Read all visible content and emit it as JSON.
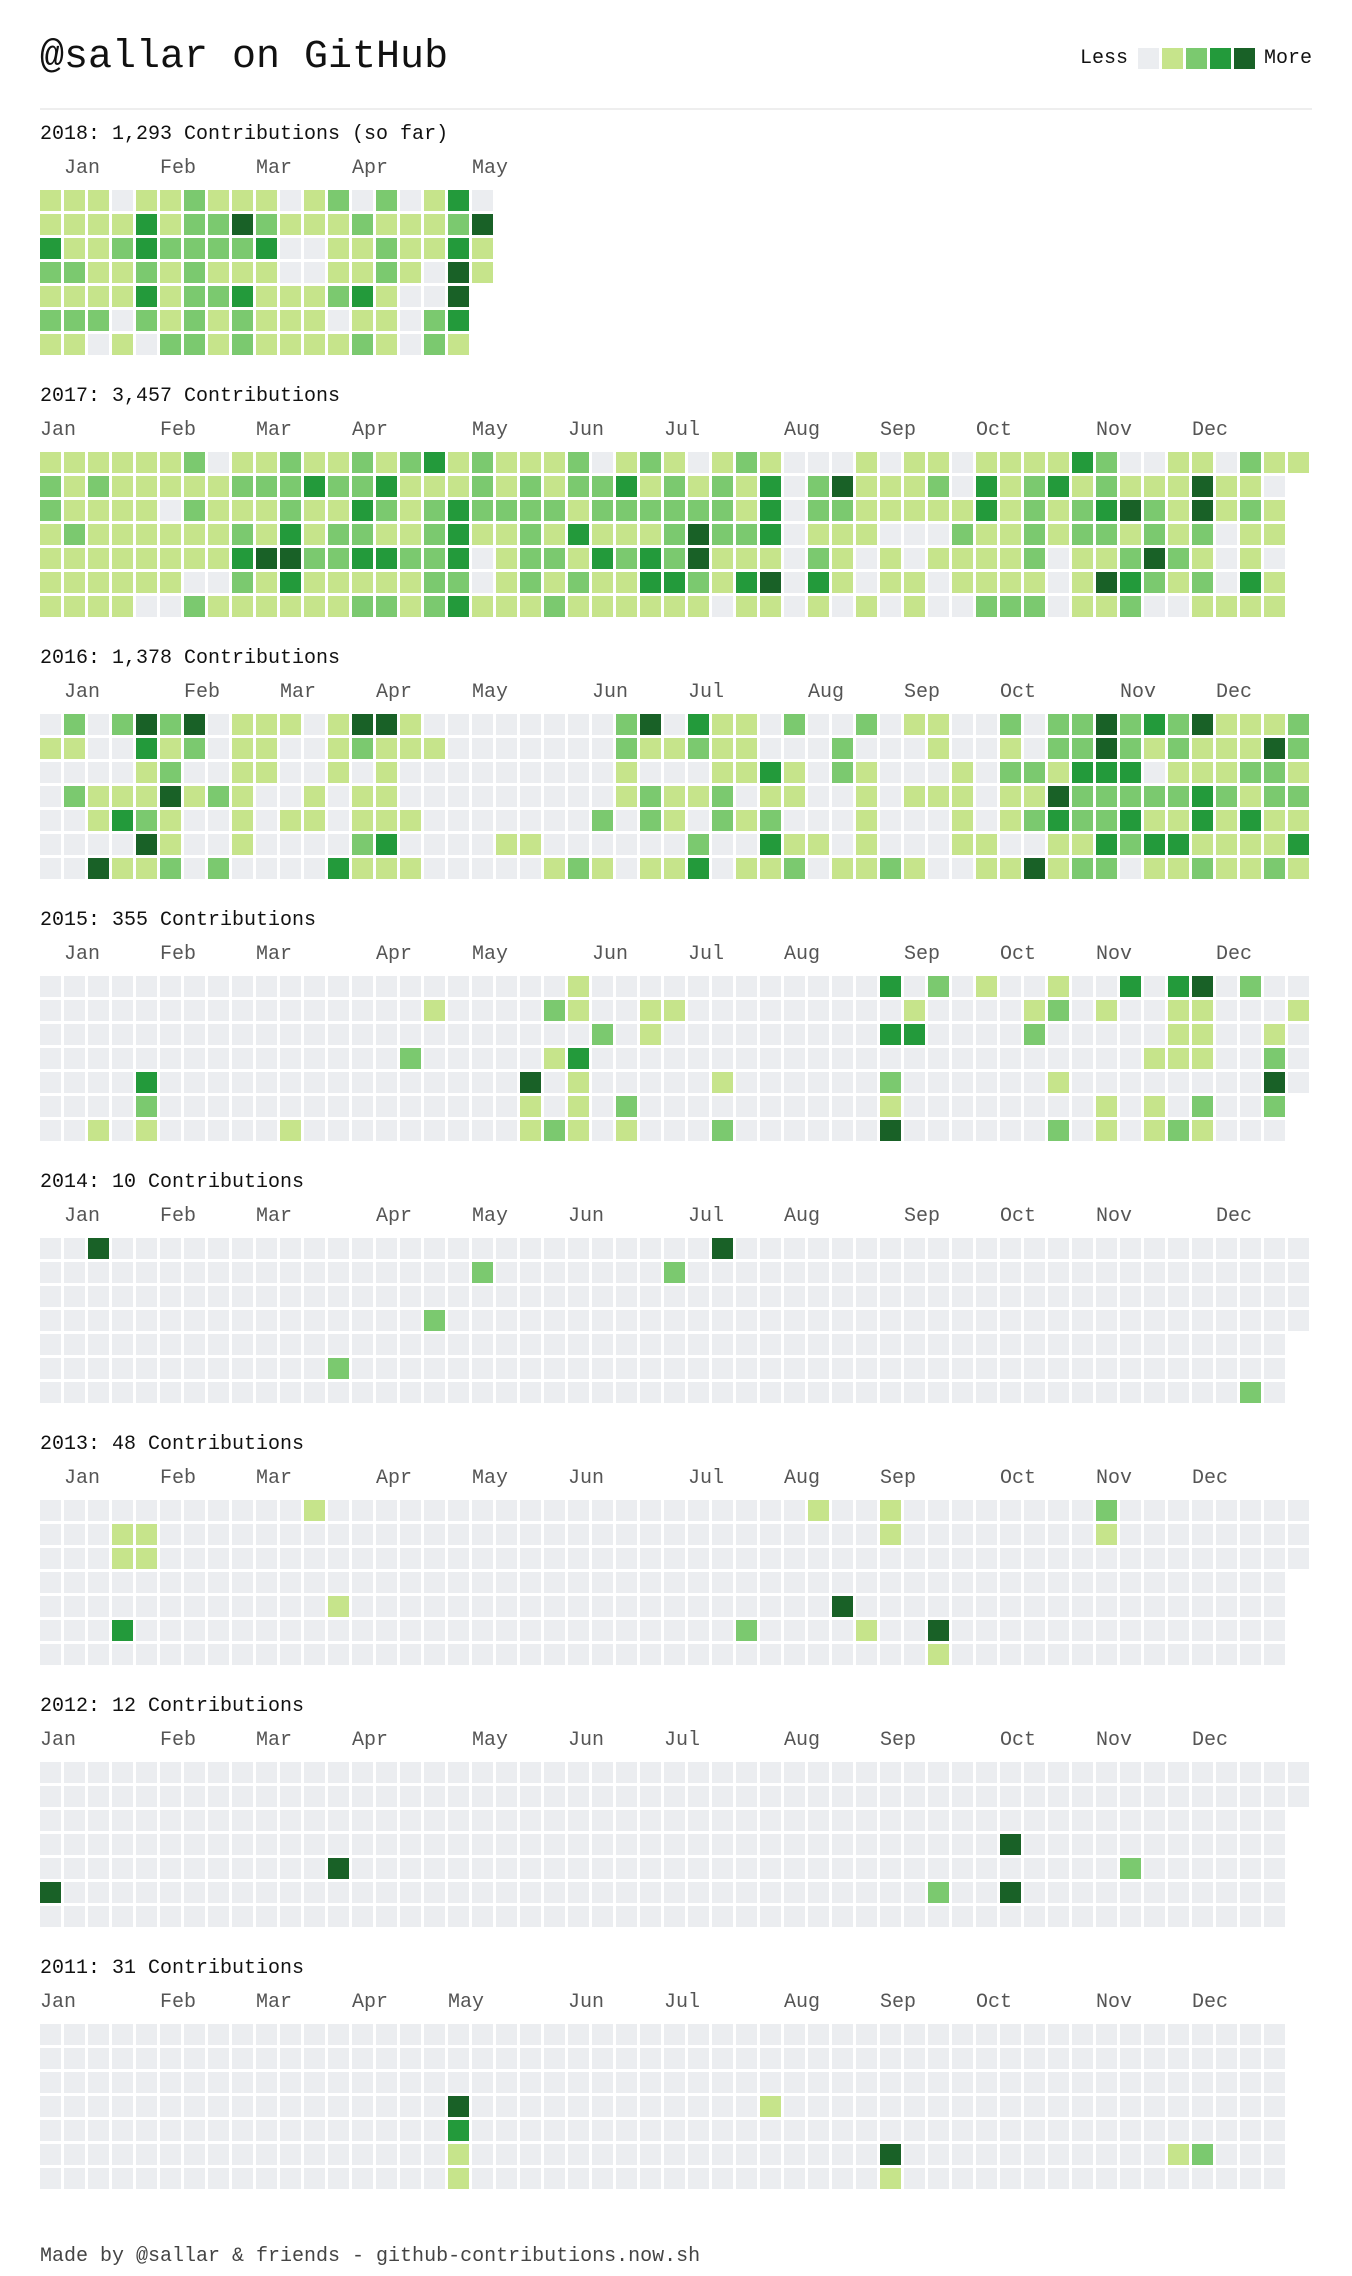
{
  "header": {
    "title": "@sallar on GitHub"
  },
  "legend": {
    "less": "Less",
    "more": "More"
  },
  "level_colors": [
    "#ebedf0",
    "#c6e48b",
    "#7bc96f",
    "#239a3b",
    "#196127"
  ],
  "years": [
    {
      "heading": "2018: 1,293 Contributions (so far)",
      "months": [
        {
          "label": "Jan",
          "week": 1
        },
        {
          "label": "Feb",
          "week": 5
        },
        {
          "label": "Mar",
          "week": 9
        },
        {
          "label": "Apr",
          "week": 13
        },
        {
          "label": "May",
          "week": 18
        }
      ],
      "rows": [
        "1110112111012020130",
        "1111312242111211124",
        "3112322223001121131",
        "2211212111001121041",
        "111131223111231004",
        "222021212111011023",
        "110102212111121021"
      ]
    },
    {
      "heading": "2017: 3,457 Contributions",
      "months": [
        {
          "label": "Jan",
          "week": 0
        },
        {
          "label": "Feb",
          "week": 5
        },
        {
          "label": "Mar",
          "week": 9
        },
        {
          "label": "Apr",
          "week": 13
        },
        {
          "label": "May",
          "week": 18
        },
        {
          "label": "Jun",
          "week": 22
        },
        {
          "label": "Jul",
          "week": 26
        },
        {
          "label": "Aug",
          "week": 31
        },
        {
          "label": "Sep",
          "week": 35
        },
        {
          "label": "Oct",
          "week": 39
        },
        {
          "label": "Nov",
          "week": 44
        },
        {
          "label": "Dec",
          "week": 48
        }
      ],
      "rows": [
        "11111120112112123121112012101210001011011113200110211",
        "2121111122232231112121223121213024111203123121114110",
        "2111102111211321232222122222213022111113121234214121",
        "1211111121312211231121311124223011100021121221212011",
        "1111111134422332230122132324111021010111120112421010",
        "1111110021311111220121211332134031011011110143212031",
        "1111002111111221231112111111011010101002220112001111"
      ]
    },
    {
      "heading": "2016: 1,378 Contributions",
      "months": [
        {
          "label": "Jan",
          "week": 1
        },
        {
          "label": "Feb",
          "week": 6
        },
        {
          "label": "Mar",
          "week": 10
        },
        {
          "label": "Apr",
          "week": 14
        },
        {
          "label": "May",
          "week": 18
        },
        {
          "label": "Jun",
          "week": 23
        },
        {
          "label": "Jul",
          "week": 27
        },
        {
          "label": "Aug",
          "week": 32
        },
        {
          "label": "Sep",
          "week": 36
        },
        {
          "label": "Oct",
          "week": 40
        },
        {
          "label": "Nov",
          "week": 45
        },
        {
          "label": "Dec",
          "week": 49
        }
      ],
      "rows": [
        "02024240111014410000000024031102002011002022423241112",
        "11003120110012111000000021121100020001001022421211142",
        "00001200110010100000000010001131021000102213330111221",
        "02111412100101100000000012112011001011101142222232122",
        "00132100101101110000000202102120001000101232231131311",
        "00004100100002300001100000020031101000110011323311113",
        "00411202000031110000012101130112011210011412201121121"
      ]
    },
    {
      "heading": "2015: 355 Contributions",
      "months": [
        {
          "label": "Jan",
          "week": 1
        },
        {
          "label": "Feb",
          "week": 5
        },
        {
          "label": "Mar",
          "week": 9
        },
        {
          "label": "Apr",
          "week": 14
        },
        {
          "label": "May",
          "week": 18
        },
        {
          "label": "Jun",
          "week": 23
        },
        {
          "label": "Jul",
          "week": 27
        },
        {
          "label": "Aug",
          "week": 31
        },
        {
          "label": "Sep",
          "week": 36
        },
        {
          "label": "Oct",
          "week": 40
        },
        {
          "label": "Nov",
          "week": 44
        },
        {
          "label": "Dec",
          "week": 49
        }
      ],
      "row_lengths": [
        53,
        53,
        53,
        53,
        53,
        52,
        52
      ],
      "cells": [
        [
          0,
          22,
          1
        ],
        [
          0,
          35,
          3
        ],
        [
          0,
          37,
          2
        ],
        [
          0,
          39,
          1
        ],
        [
          0,
          42,
          1
        ],
        [
          0,
          45,
          3
        ],
        [
          0,
          47,
          3
        ],
        [
          0,
          48,
          4
        ],
        [
          0,
          50,
          2
        ],
        [
          1,
          16,
          1
        ],
        [
          1,
          21,
          2
        ],
        [
          1,
          22,
          1
        ],
        [
          1,
          25,
          1
        ],
        [
          1,
          26,
          1
        ],
        [
          1,
          36,
          1
        ],
        [
          1,
          41,
          1
        ],
        [
          1,
          42,
          2
        ],
        [
          1,
          44,
          1
        ],
        [
          1,
          47,
          1
        ],
        [
          1,
          48,
          1
        ],
        [
          1,
          52,
          1
        ],
        [
          2,
          23,
          2
        ],
        [
          2,
          25,
          1
        ],
        [
          2,
          35,
          3
        ],
        [
          2,
          36,
          3
        ],
        [
          2,
          41,
          2
        ],
        [
          2,
          47,
          1
        ],
        [
          2,
          48,
          1
        ],
        [
          2,
          51,
          1
        ],
        [
          3,
          15,
          2
        ],
        [
          3,
          21,
          1
        ],
        [
          3,
          22,
          3
        ],
        [
          3,
          46,
          1
        ],
        [
          3,
          47,
          1
        ],
        [
          3,
          48,
          1
        ],
        [
          3,
          51,
          2
        ],
        [
          4,
          4,
          3
        ],
        [
          4,
          20,
          4
        ],
        [
          4,
          22,
          1
        ],
        [
          4,
          28,
          1
        ],
        [
          4,
          35,
          2
        ],
        [
          4,
          42,
          1
        ],
        [
          4,
          51,
          4
        ],
        [
          5,
          4,
          2
        ],
        [
          5,
          20,
          1
        ],
        [
          5,
          22,
          1
        ],
        [
          5,
          24,
          2
        ],
        [
          5,
          35,
          1
        ],
        [
          5,
          44,
          1
        ],
        [
          5,
          46,
          1
        ],
        [
          5,
          48,
          2
        ],
        [
          5,
          51,
          2
        ],
        [
          6,
          2,
          1
        ],
        [
          6,
          4,
          1
        ],
        [
          6,
          10,
          1
        ],
        [
          6,
          20,
          1
        ],
        [
          6,
          21,
          2
        ],
        [
          6,
          22,
          1
        ],
        [
          6,
          24,
          1
        ],
        [
          6,
          28,
          2
        ],
        [
          6,
          35,
          4
        ],
        [
          6,
          42,
          2
        ],
        [
          6,
          44,
          1
        ],
        [
          6,
          46,
          1
        ],
        [
          6,
          47,
          2
        ],
        [
          6,
          48,
          1
        ]
      ]
    },
    {
      "heading": "2014: 10 Contributions",
      "months": [
        {
          "label": "Jan",
          "week": 1
        },
        {
          "label": "Feb",
          "week": 5
        },
        {
          "label": "Mar",
          "week": 9
        },
        {
          "label": "Apr",
          "week": 14
        },
        {
          "label": "May",
          "week": 18
        },
        {
          "label": "Jun",
          "week": 22
        },
        {
          "label": "Jul",
          "week": 27
        },
        {
          "label": "Aug",
          "week": 31
        },
        {
          "label": "Sep",
          "week": 36
        },
        {
          "label": "Oct",
          "week": 40
        },
        {
          "label": "Nov",
          "week": 44
        },
        {
          "label": "Dec",
          "week": 49
        }
      ],
      "row_lengths": [
        53,
        53,
        53,
        53,
        52,
        52,
        52
      ],
      "cells": [
        [
          0,
          2,
          4
        ],
        [
          0,
          28,
          4
        ],
        [
          1,
          18,
          2
        ],
        [
          1,
          26,
          2
        ],
        [
          3,
          16,
          2
        ],
        [
          5,
          12,
          2
        ],
        [
          6,
          50,
          2
        ]
      ]
    },
    {
      "heading": "2013: 48 Contributions",
      "months": [
        {
          "label": "Jan",
          "week": 1
        },
        {
          "label": "Feb",
          "week": 5
        },
        {
          "label": "Mar",
          "week": 9
        },
        {
          "label": "Apr",
          "week": 14
        },
        {
          "label": "May",
          "week": 18
        },
        {
          "label": "Jun",
          "week": 22
        },
        {
          "label": "Jul",
          "week": 27
        },
        {
          "label": "Aug",
          "week": 31
        },
        {
          "label": "Sep",
          "week": 35
        },
        {
          "label": "Oct",
          "week": 40
        },
        {
          "label": "Nov",
          "week": 44
        },
        {
          "label": "Dec",
          "week": 48
        }
      ],
      "row_lengths": [
        53,
        53,
        53,
        52,
        52,
        52,
        52
      ],
      "cells": [
        [
          0,
          11,
          1
        ],
        [
          0,
          32,
          1
        ],
        [
          0,
          35,
          1
        ],
        [
          0,
          44,
          2
        ],
        [
          1,
          3,
          1
        ],
        [
          1,
          4,
          1
        ],
        [
          1,
          35,
          1
        ],
        [
          1,
          44,
          1
        ],
        [
          2,
          3,
          1
        ],
        [
          2,
          4,
          1
        ],
        [
          4,
          12,
          1
        ],
        [
          4,
          33,
          4
        ],
        [
          5,
          3,
          3
        ],
        [
          5,
          29,
          2
        ],
        [
          5,
          34,
          1
        ],
        [
          5,
          37,
          4
        ],
        [
          6,
          37,
          1
        ]
      ]
    },
    {
      "heading": "2012: 12 Contributions",
      "months": [
        {
          "label": "Jan",
          "week": 0
        },
        {
          "label": "Feb",
          "week": 5
        },
        {
          "label": "Mar",
          "week": 9
        },
        {
          "label": "Apr",
          "week": 13
        },
        {
          "label": "May",
          "week": 18
        },
        {
          "label": "Jun",
          "week": 22
        },
        {
          "label": "Jul",
          "week": 26
        },
        {
          "label": "Aug",
          "week": 31
        },
        {
          "label": "Sep",
          "week": 35
        },
        {
          "label": "Oct",
          "week": 40
        },
        {
          "label": "Nov",
          "week": 44
        },
        {
          "label": "Dec",
          "week": 48
        }
      ],
      "row_lengths": [
        53,
        53,
        52,
        52,
        52,
        52,
        52
      ],
      "cells": [
        [
          3,
          40,
          4
        ],
        [
          4,
          12,
          4
        ],
        [
          4,
          45,
          2
        ],
        [
          5,
          0,
          4
        ],
        [
          5,
          37,
          2
        ],
        [
          5,
          40,
          4
        ]
      ]
    },
    {
      "heading": "2011: 31 Contributions",
      "months": [
        {
          "label": "Jan",
          "week": 0
        },
        {
          "label": "Feb",
          "week": 5
        },
        {
          "label": "Mar",
          "week": 9
        },
        {
          "label": "Apr",
          "week": 13
        },
        {
          "label": "May",
          "week": 17
        },
        {
          "label": "Jun",
          "week": 22
        },
        {
          "label": "Jul",
          "week": 26
        },
        {
          "label": "Aug",
          "week": 31
        },
        {
          "label": "Sep",
          "week": 35
        },
        {
          "label": "Oct",
          "week": 39
        },
        {
          "label": "Nov",
          "week": 44
        },
        {
          "label": "Dec",
          "week": 48
        }
      ],
      "row_lengths": [
        52,
        52,
        52,
        52,
        52,
        52,
        52
      ],
      "cells": [
        [
          3,
          17,
          4
        ],
        [
          3,
          30,
          1
        ],
        [
          4,
          17,
          3
        ],
        [
          5,
          17,
          1
        ],
        [
          5,
          35,
          4
        ],
        [
          5,
          47,
          1
        ],
        [
          5,
          48,
          2
        ],
        [
          6,
          17,
          1
        ],
        [
          6,
          35,
          1
        ]
      ]
    }
  ],
  "footer": {
    "text": "Made by @sallar & friends - github-contributions.now.sh"
  }
}
